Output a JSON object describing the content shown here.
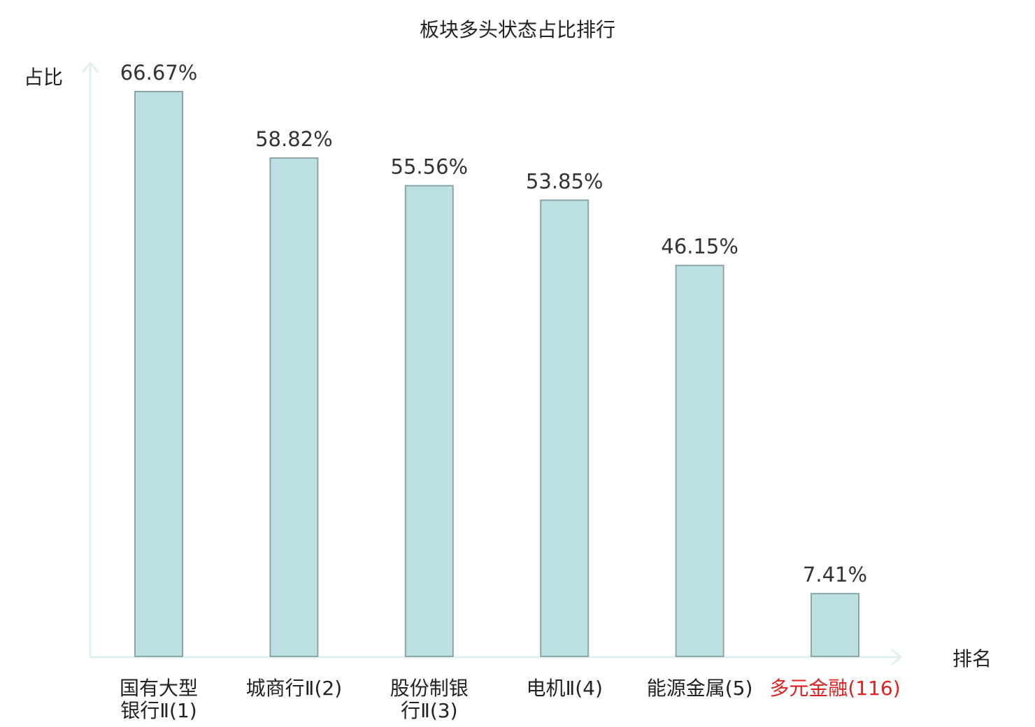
{
  "chart_data": {
    "type": "bar",
    "title": "板块多头状态占比排行",
    "ylabel": "占比",
    "xlabel": "排名",
    "categories": [
      {
        "lines": [
          "国有大型",
          "银行Ⅱ(1)"
        ],
        "highlight": false
      },
      {
        "lines": [
          "城商行Ⅱ(2)"
        ],
        "highlight": false
      },
      {
        "lines": [
          "股份制银",
          "行Ⅱ(3)"
        ],
        "highlight": false
      },
      {
        "lines": [
          "电机Ⅱ(4)"
        ],
        "highlight": false
      },
      {
        "lines": [
          "能源金属(5)"
        ],
        "highlight": false
      },
      {
        "lines": [
          "多元金融(116)"
        ],
        "highlight": true
      }
    ],
    "values": [
      66.67,
      58.82,
      55.56,
      53.85,
      46.15,
      7.41
    ],
    "data_labels": [
      "66.67%",
      "58.82%",
      "55.56%",
      "53.85%",
      "46.15%",
      "7.41%"
    ],
    "ylim": [
      0,
      66.67
    ],
    "grid": false,
    "legend": "none",
    "colors": {
      "bar_fill": "#bde0e3",
      "bar_stroke": "#8aa6a8",
      "axis": "#dff1ee",
      "text": "#333333",
      "highlight_text": "#e02020"
    }
  }
}
